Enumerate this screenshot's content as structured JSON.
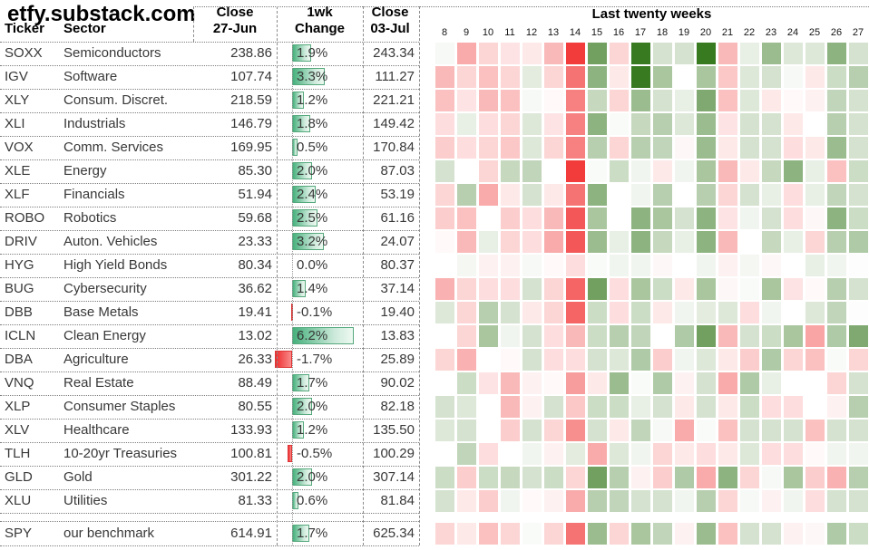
{
  "header": {
    "title": "etfy.substack.com",
    "col_ticker": "Ticker",
    "col_sector": "Sector",
    "close1_line1": "Close",
    "close1_line2": "27-Jun",
    "change_line1": "1wk",
    "change_line2": "Change",
    "close2_line1": "Close",
    "close2_line2": "03-Jul",
    "heatmap_title": "Last twenty weeks"
  },
  "rows": [
    {
      "ticker": "SOXX",
      "sector": "Semiconductors",
      "close_27jun": "238.86",
      "change_pct": 1.9,
      "change_label": "1.9%",
      "close_03jul": "243.34"
    },
    {
      "ticker": "IGV",
      "sector": "Software",
      "close_27jun": "107.74",
      "change_pct": 3.3,
      "change_label": "3.3%",
      "close_03jul": "111.27"
    },
    {
      "ticker": "XLY",
      "sector": "Consum. Discret.",
      "close_27jun": "218.59",
      "change_pct": 1.2,
      "change_label": "1.2%",
      "close_03jul": "221.21"
    },
    {
      "ticker": "XLI",
      "sector": "Industrials",
      "close_27jun": "146.79",
      "change_pct": 1.8,
      "change_label": "1.8%",
      "close_03jul": "149.42"
    },
    {
      "ticker": "VOX",
      "sector": "Comm. Services",
      "close_27jun": "169.95",
      "change_pct": 0.5,
      "change_label": "0.5%",
      "close_03jul": "170.84"
    },
    {
      "ticker": "XLE",
      "sector": "Energy",
      "close_27jun": "85.30",
      "change_pct": 2.0,
      "change_label": "2.0%",
      "close_03jul": "87.03"
    },
    {
      "ticker": "XLF",
      "sector": "Financials",
      "close_27jun": "51.94",
      "change_pct": 2.4,
      "change_label": "2.4%",
      "close_03jul": "53.19"
    },
    {
      "ticker": "ROBO",
      "sector": "Robotics",
      "close_27jun": "59.68",
      "change_pct": 2.5,
      "change_label": "2.5%",
      "close_03jul": "61.16"
    },
    {
      "ticker": "DRIV",
      "sector": "Auton. Vehicles",
      "close_27jun": "23.33",
      "change_pct": 3.2,
      "change_label": "3.2%",
      "close_03jul": "24.07"
    },
    {
      "ticker": "HYG",
      "sector": "High Yield Bonds",
      "close_27jun": "80.34",
      "change_pct": 0.0,
      "change_label": "0.0%",
      "close_03jul": "80.37"
    },
    {
      "ticker": "BUG",
      "sector": "Cybersecurity",
      "close_27jun": "36.62",
      "change_pct": 1.4,
      "change_label": "1.4%",
      "close_03jul": "37.14"
    },
    {
      "ticker": "DBB",
      "sector": "Base Metals",
      "close_27jun": "19.41",
      "change_pct": -0.1,
      "change_label": "-0.1%",
      "close_03jul": "19.40"
    },
    {
      "ticker": "ICLN",
      "sector": "Clean Energy",
      "close_27jun": "13.02",
      "change_pct": 6.2,
      "change_label": "6.2%",
      "close_03jul": "13.83"
    },
    {
      "ticker": "DBA",
      "sector": "Agriculture",
      "close_27jun": "26.33",
      "change_pct": -1.7,
      "change_label": "-1.7%",
      "close_03jul": "25.89"
    },
    {
      "ticker": "VNQ",
      "sector": "Real Estate",
      "close_27jun": "88.49",
      "change_pct": 1.7,
      "change_label": "1.7%",
      "close_03jul": "90.02"
    },
    {
      "ticker": "XLP",
      "sector": "Consumer Staples",
      "close_27jun": "80.55",
      "change_pct": 2.0,
      "change_label": "2.0%",
      "close_03jul": "82.18"
    },
    {
      "ticker": "XLV",
      "sector": "Healthcare",
      "close_27jun": "133.93",
      "change_pct": 1.2,
      "change_label": "1.2%",
      "close_03jul": "135.50"
    },
    {
      "ticker": "TLH",
      "sector": "10-20yr Treasuries",
      "close_27jun": "100.81",
      "change_pct": -0.5,
      "change_label": "-0.5%",
      "close_03jul": "100.29"
    },
    {
      "ticker": "GLD",
      "sector": "Gold",
      "close_27jun": "301.22",
      "change_pct": 2.0,
      "change_label": "2.0%",
      "close_03jul": "307.14"
    },
    {
      "ticker": "XLU",
      "sector": "Utilities",
      "close_27jun": "81.33",
      "change_pct": 0.6,
      "change_label": "0.6%",
      "close_03jul": "81.84"
    },
    {
      "ticker": "SPY",
      "sector": "our benchmark",
      "close_27jun": "614.91",
      "change_pct": 1.7,
      "change_label": "1.7%",
      "close_03jul": "625.34",
      "gap_before": true
    }
  ],
  "chart_data": {
    "type": "heatmap",
    "title": "Last twenty weeks",
    "x_labels": [
      8,
      9,
      10,
      11,
      12,
      13,
      14,
      15,
      16,
      17,
      18,
      19,
      20,
      21,
      22,
      23,
      24,
      25,
      26,
      27
    ],
    "y_labels": [
      "SOXX",
      "IGV",
      "XLY",
      "XLI",
      "VOX",
      "XLE",
      "XLF",
      "ROBO",
      "DRIV",
      "HYG",
      "BUG",
      "DBB",
      "ICLN",
      "DBA",
      "VNQ",
      "XLP",
      "XLV",
      "TLH",
      "GLD",
      "XLU",
      "SPY"
    ],
    "values_estimated_weekly_pct": [
      [
        0.3,
        -3,
        -1.5,
        -1,
        -0.8,
        -2.5,
        -8,
        5,
        -1.5,
        8,
        1.5,
        1.5,
        7,
        -2.5,
        0.8,
        3.5,
        1.2,
        1.2,
        4,
        1.5
      ],
      [
        -2.5,
        -1.5,
        -2.2,
        -1.5,
        1,
        -1.5,
        -5,
        4,
        -0.8,
        7,
        3,
        0,
        3,
        -2,
        1.2,
        1.5,
        0.3,
        -0.8,
        1.8,
        2.5
      ],
      [
        -2.2,
        -1,
        -2.5,
        -2.2,
        0.3,
        -0.2,
        -4.5,
        2,
        -1.5,
        3.5,
        1.5,
        0.8,
        4.5,
        -2.2,
        1.2,
        -0.8,
        -0.2,
        -0.5,
        2.2,
        1.5
      ],
      [
        -1.2,
        0.8,
        -1.2,
        -1.5,
        1.2,
        -1,
        -4.5,
        4,
        0.2,
        2,
        2.5,
        1.2,
        3.5,
        -1,
        1.5,
        1.5,
        -0.8,
        0,
        2.5,
        1.5
      ],
      [
        -1.8,
        -1.2,
        -1.5,
        -2,
        1.2,
        -1.5,
        -4.5,
        2.5,
        -1.5,
        2.5,
        2.2,
        -0.3,
        3.5,
        -0.8,
        1.5,
        1.5,
        -1.2,
        -0.8,
        3.5,
        1.5
      ],
      [
        1.5,
        0,
        -1.5,
        2,
        2.2,
        0,
        -7,
        0.2,
        1.8,
        0.5,
        -0.8,
        0.5,
        3,
        -2.5,
        -0.8,
        2,
        4,
        0.8,
        -2.2,
        1.8
      ],
      [
        -1.5,
        2.5,
        -3,
        -0.8,
        1.5,
        -0.8,
        -5,
        4,
        0,
        0.5,
        2.5,
        0,
        2.5,
        -1.5,
        1.5,
        0.8,
        -1.2,
        0.8,
        2.2,
        1.5
      ],
      [
        -1.8,
        -2.2,
        0,
        -1.8,
        -1.2,
        -2.5,
        -6,
        3,
        0,
        4,
        3,
        1.5,
        4,
        -1,
        0.5,
        1.5,
        -1.2,
        -0.3,
        4,
        1.8
      ],
      [
        -0.2,
        -2.5,
        0.8,
        -1.5,
        -1.2,
        -3,
        -6,
        3.5,
        0.8,
        4,
        2,
        0.8,
        4,
        -2.5,
        0,
        2,
        0.8,
        -1.5,
        2.5,
        2.8
      ],
      [
        0,
        0.4,
        -0.5,
        -0.5,
        0.3,
        -0.2,
        -1.2,
        0.2,
        0.5,
        0.5,
        -0.3,
        0,
        0.5,
        -0.5,
        0.4,
        -0.3,
        0,
        0.8,
        0.5,
        0.1
      ],
      [
        -2.8,
        -1.5,
        -1.2,
        -1.2,
        1.5,
        -1.5,
        -5.5,
        5,
        -1.2,
        3,
        1.8,
        -0.8,
        3,
        -0.3,
        0.2,
        3,
        -1,
        -0.2,
        2.5,
        1.5
      ],
      [
        1.2,
        -1.5,
        2.5,
        1.5,
        -0.8,
        -1.5,
        -5.5,
        1.8,
        -1.2,
        1.8,
        -0.8,
        0.5,
        1,
        1.2,
        -1.2,
        0.5,
        0,
        1.2,
        2.2,
        0.1
      ],
      [
        0,
        -1.5,
        3,
        0.5,
        1.5,
        -1.2,
        -2.5,
        1.8,
        2.5,
        2.2,
        0,
        2.8,
        5,
        -2.5,
        1.5,
        1.8,
        3,
        -3.2,
        2.8,
        4.5
      ],
      [
        -1.5,
        -2.8,
        0,
        -0.2,
        1.5,
        -1.2,
        -1.2,
        1.5,
        1.2,
        2.8,
        -1.8,
        0.5,
        1.2,
        -0.8,
        -1.8,
        2.8,
        -1.5,
        -2.2,
        0.2,
        -1.5
      ],
      [
        0,
        1.8,
        -1,
        -2.5,
        -0.5,
        -0.2,
        -3.5,
        -0.8,
        3.5,
        0.2,
        2.8,
        -0.5,
        1.5,
        -3,
        2.8,
        0.8,
        0,
        0,
        -1.5,
        1.5
      ],
      [
        1.5,
        1.2,
        0,
        -2.5,
        -0.5,
        1.5,
        -2,
        1.8,
        1.8,
        0.8,
        1.5,
        -0.8,
        1.5,
        -0.8,
        1.8,
        -1.2,
        -1.2,
        0,
        -0.5,
        2.5
      ],
      [
        1.2,
        1.5,
        0,
        -1.8,
        1.5,
        -1.5,
        -4,
        1.5,
        -0.8,
        2.2,
        0.3,
        -3,
        0.2,
        -2.2,
        1.5,
        1.5,
        1.5,
        -2.2,
        1.5,
        1.5
      ],
      [
        0,
        2.2,
        -1.2,
        0,
        0.5,
        -0.5,
        1,
        -3,
        1.2,
        0.5,
        -1.5,
        -0.8,
        -1.2,
        -0.8,
        1.2,
        -1.2,
        -1.2,
        -0.2,
        0.5,
        0.5
      ],
      [
        1.8,
        -1.8,
        1.8,
        2,
        1.5,
        1.8,
        -1.5,
        5,
        2.5,
        -0.5,
        -1.8,
        2.8,
        -3,
        4,
        -1.5,
        0.3,
        3,
        -1.8,
        -2.8,
        2.5
      ],
      [
        1.5,
        -0.8,
        -1.8,
        0.5,
        -0.2,
        -0.5,
        -3,
        2.5,
        2.2,
        1.5,
        1.5,
        0.5,
        2.5,
        -1.5,
        0.3,
        -0.5,
        0.5,
        -1.2,
        1.5,
        1.5
      ],
      [
        -1.5,
        -0.8,
        -2.2,
        -1.5,
        0.2,
        -1.5,
        -5,
        3.5,
        -1.5,
        3,
        2.2,
        -0.5,
        3.5,
        -2.2,
        1.5,
        1.5,
        -0.5,
        -0.3,
        2.8,
        1.8
      ]
    ],
    "color_scale": {
      "negative_max": "#F23B3B",
      "zero": "#FFFFFF",
      "positive_max": "#387A20"
    },
    "legend_position": "none",
    "grid": "white gaps between cells"
  },
  "colors": {
    "bar_positive_dark": "#46B07C",
    "bar_positive_light": "#EEF9F2",
    "bar_negative_dark": "#EE2E2E",
    "bar_negative_light": "#F98A8A",
    "text": "#383838",
    "header_text": "#000000"
  }
}
